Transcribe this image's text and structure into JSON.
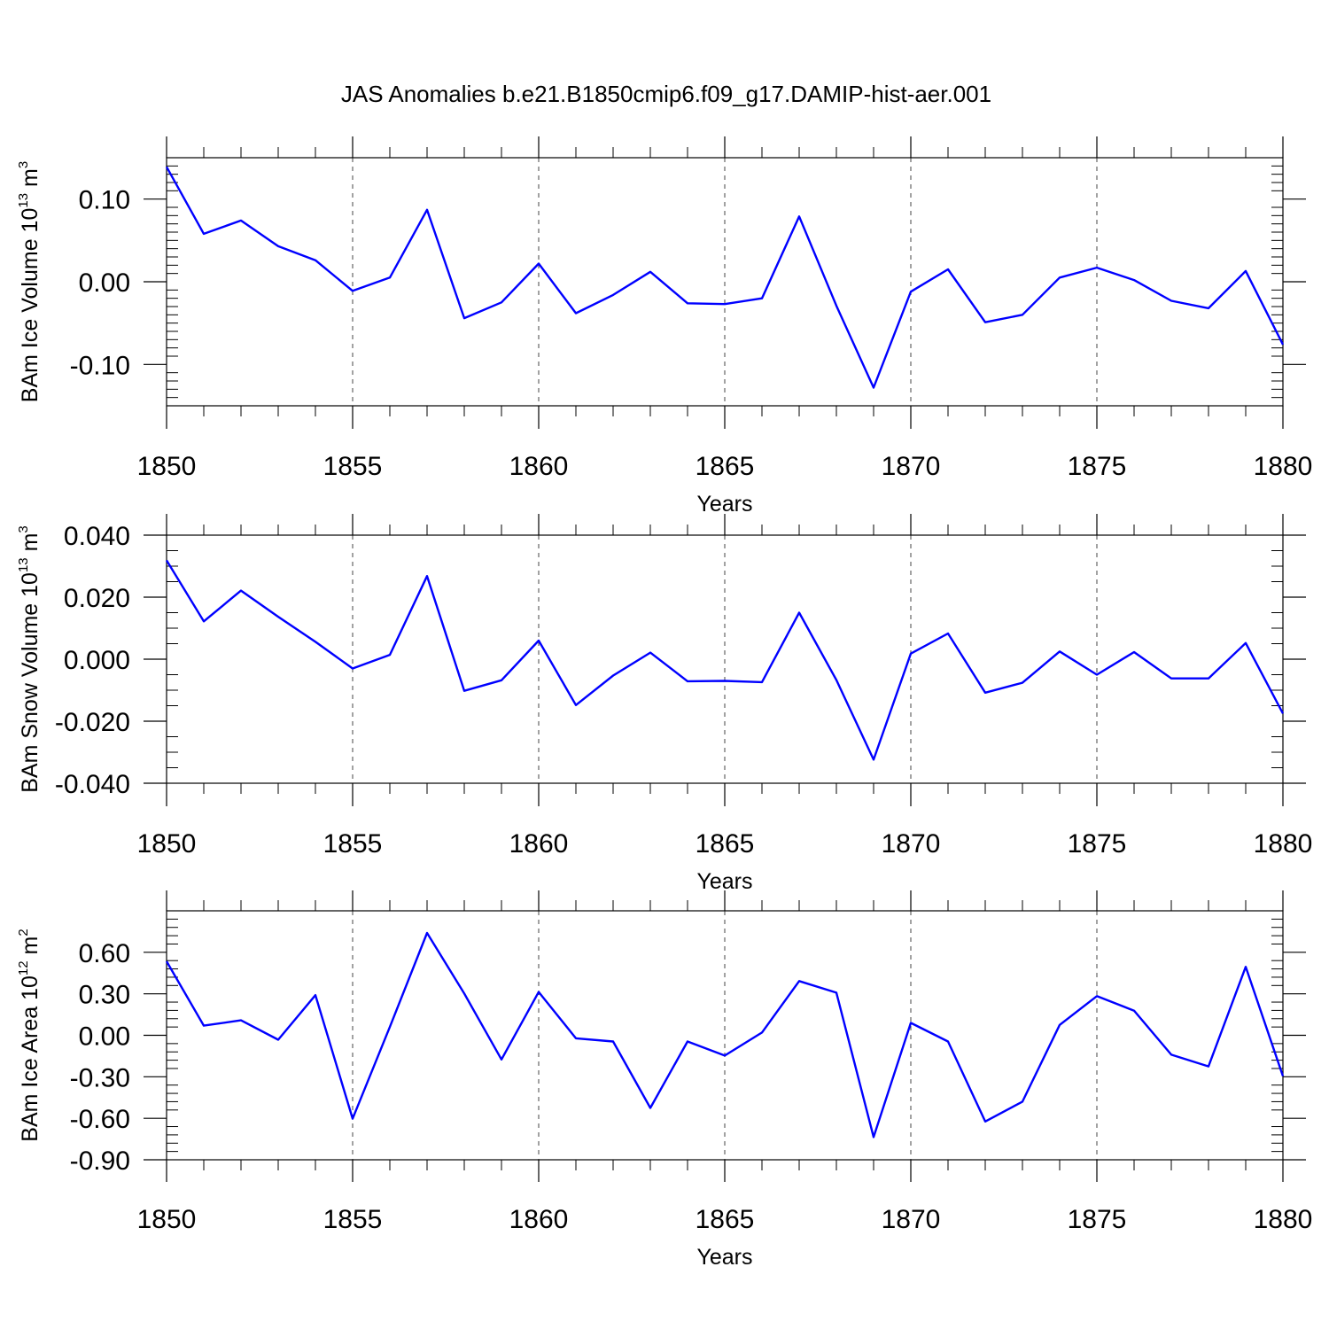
{
  "figure_title": "JAS Anomalies b.e21.B1850cmip6.f09_g17.DAMIP-hist-aer.001",
  "line_color": "#0000ff",
  "chart_data": [
    {
      "type": "line",
      "ylabel": "BAm Ice Volume 10",
      "ylabel_exponent": "13",
      "ylabel_unit": " m",
      "ylabel_unit_exponent": "3",
      "xlabel": "Years",
      "xlim": [
        1850,
        1880
      ],
      "ylim": [
        -0.15,
        0.15
      ],
      "x_ticks": [
        1850,
        1855,
        1860,
        1865,
        1870,
        1875,
        1880
      ],
      "x_tick_labels": [
        "1850",
        "1855",
        "1860",
        "1865",
        "1870",
        "1875",
        "1880"
      ],
      "y_ticks": [
        0.1,
        0.0,
        -0.1
      ],
      "y_tick_labels": [
        "0.10",
        "0.00",
        "-0.10"
      ],
      "grid": "dashed vertical lines at major x ticks",
      "series": [
        {
          "x": [
            1850,
            1851,
            1852,
            1853,
            1854,
            1855,
            1856,
            1857,
            1858,
            1859,
            1860,
            1861,
            1862,
            1863,
            1864,
            1865,
            1866,
            1867,
            1868,
            1869,
            1870,
            1871,
            1872,
            1873,
            1874,
            1875,
            1876,
            1877,
            1878,
            1879,
            1880
          ],
          "y": [
            0.139,
            0.058,
            0.074,
            0.043,
            0.026,
            -0.011,
            0.005,
            0.087,
            -0.044,
            -0.025,
            0.022,
            -0.038,
            -0.016,
            0.012,
            -0.026,
            -0.027,
            -0.02,
            0.079,
            -0.029,
            -0.128,
            -0.012,
            0.015,
            -0.049,
            -0.04,
            0.005,
            0.017,
            0.002,
            -0.023,
            -0.032,
            0.013,
            -0.076
          ]
        }
      ]
    },
    {
      "type": "line",
      "ylabel": "BAm Snow Volume 10",
      "ylabel_exponent": "13",
      "ylabel_unit": " m",
      "ylabel_unit_exponent": "3",
      "xlabel": "Years",
      "xlim": [
        1850,
        1880
      ],
      "ylim": [
        -0.04,
        0.04
      ],
      "x_ticks": [
        1850,
        1855,
        1860,
        1865,
        1870,
        1875,
        1880
      ],
      "x_tick_labels": [
        "1850",
        "1855",
        "1860",
        "1865",
        "1870",
        "1875",
        "1880"
      ],
      "y_ticks": [
        0.04,
        0.02,
        0.0,
        -0.02,
        -0.04
      ],
      "y_tick_labels": [
        "0.040",
        "0.020",
        "0.000",
        "-0.020",
        "-0.040"
      ],
      "grid": "dashed vertical lines at major x ticks",
      "series": [
        {
          "x": [
            1850,
            1851,
            1852,
            1853,
            1854,
            1855,
            1856,
            1857,
            1858,
            1859,
            1860,
            1861,
            1862,
            1863,
            1864,
            1865,
            1866,
            1867,
            1868,
            1869,
            1870,
            1871,
            1872,
            1873,
            1874,
            1875,
            1876,
            1877,
            1878,
            1879,
            1880
          ],
          "y": [
            0.0319,
            0.0122,
            0.0221,
            0.0137,
            0.0056,
            -0.003,
            0.0014,
            0.0268,
            -0.0102,
            -0.0068,
            0.006,
            -0.0148,
            -0.0053,
            0.0021,
            -0.0071,
            -0.007,
            -0.0074,
            0.015,
            -0.0067,
            -0.0324,
            0.0018,
            0.0083,
            -0.0108,
            -0.0076,
            0.0025,
            -0.005,
            0.0023,
            -0.0062,
            -0.0062,
            0.0052,
            -0.0175
          ]
        }
      ]
    },
    {
      "type": "line",
      "ylabel": "BAm Ice Area 10",
      "ylabel_exponent": "12",
      "ylabel_unit": " m",
      "ylabel_unit_exponent": "2",
      "xlabel": "Years",
      "xlim": [
        1850,
        1880
      ],
      "ylim": [
        -0.9,
        0.9
      ],
      "x_ticks": [
        1850,
        1855,
        1860,
        1865,
        1870,
        1875,
        1880
      ],
      "x_tick_labels": [
        "1850",
        "1855",
        "1860",
        "1865",
        "1870",
        "1875",
        "1880"
      ],
      "y_ticks": [
        0.6,
        0.3,
        0.0,
        -0.3,
        -0.6,
        -0.9
      ],
      "y_tick_labels": [
        "0.60",
        "0.30",
        "0.00",
        "-0.30",
        "-0.60",
        "-0.90"
      ],
      "grid": "dashed vertical lines at major x ticks",
      "series": [
        {
          "x": [
            1850,
            1851,
            1852,
            1853,
            1854,
            1855,
            1856,
            1857,
            1858,
            1859,
            1860,
            1861,
            1862,
            1863,
            1864,
            1865,
            1866,
            1867,
            1868,
            1869,
            1870,
            1871,
            1872,
            1873,
            1874,
            1875,
            1876,
            1877,
            1878,
            1879,
            1880
          ],
          "y": [
            0.535,
            0.07,
            0.108,
            -0.032,
            0.29,
            -0.603,
            0.06,
            0.74,
            0.302,
            -0.175,
            0.313,
            -0.022,
            -0.045,
            -0.525,
            -0.045,
            -0.147,
            0.02,
            0.392,
            0.308,
            -0.736,
            0.09,
            -0.045,
            -0.623,
            -0.48,
            0.075,
            0.283,
            0.178,
            -0.14,
            -0.225,
            0.495,
            -0.295
          ]
        }
      ]
    }
  ]
}
